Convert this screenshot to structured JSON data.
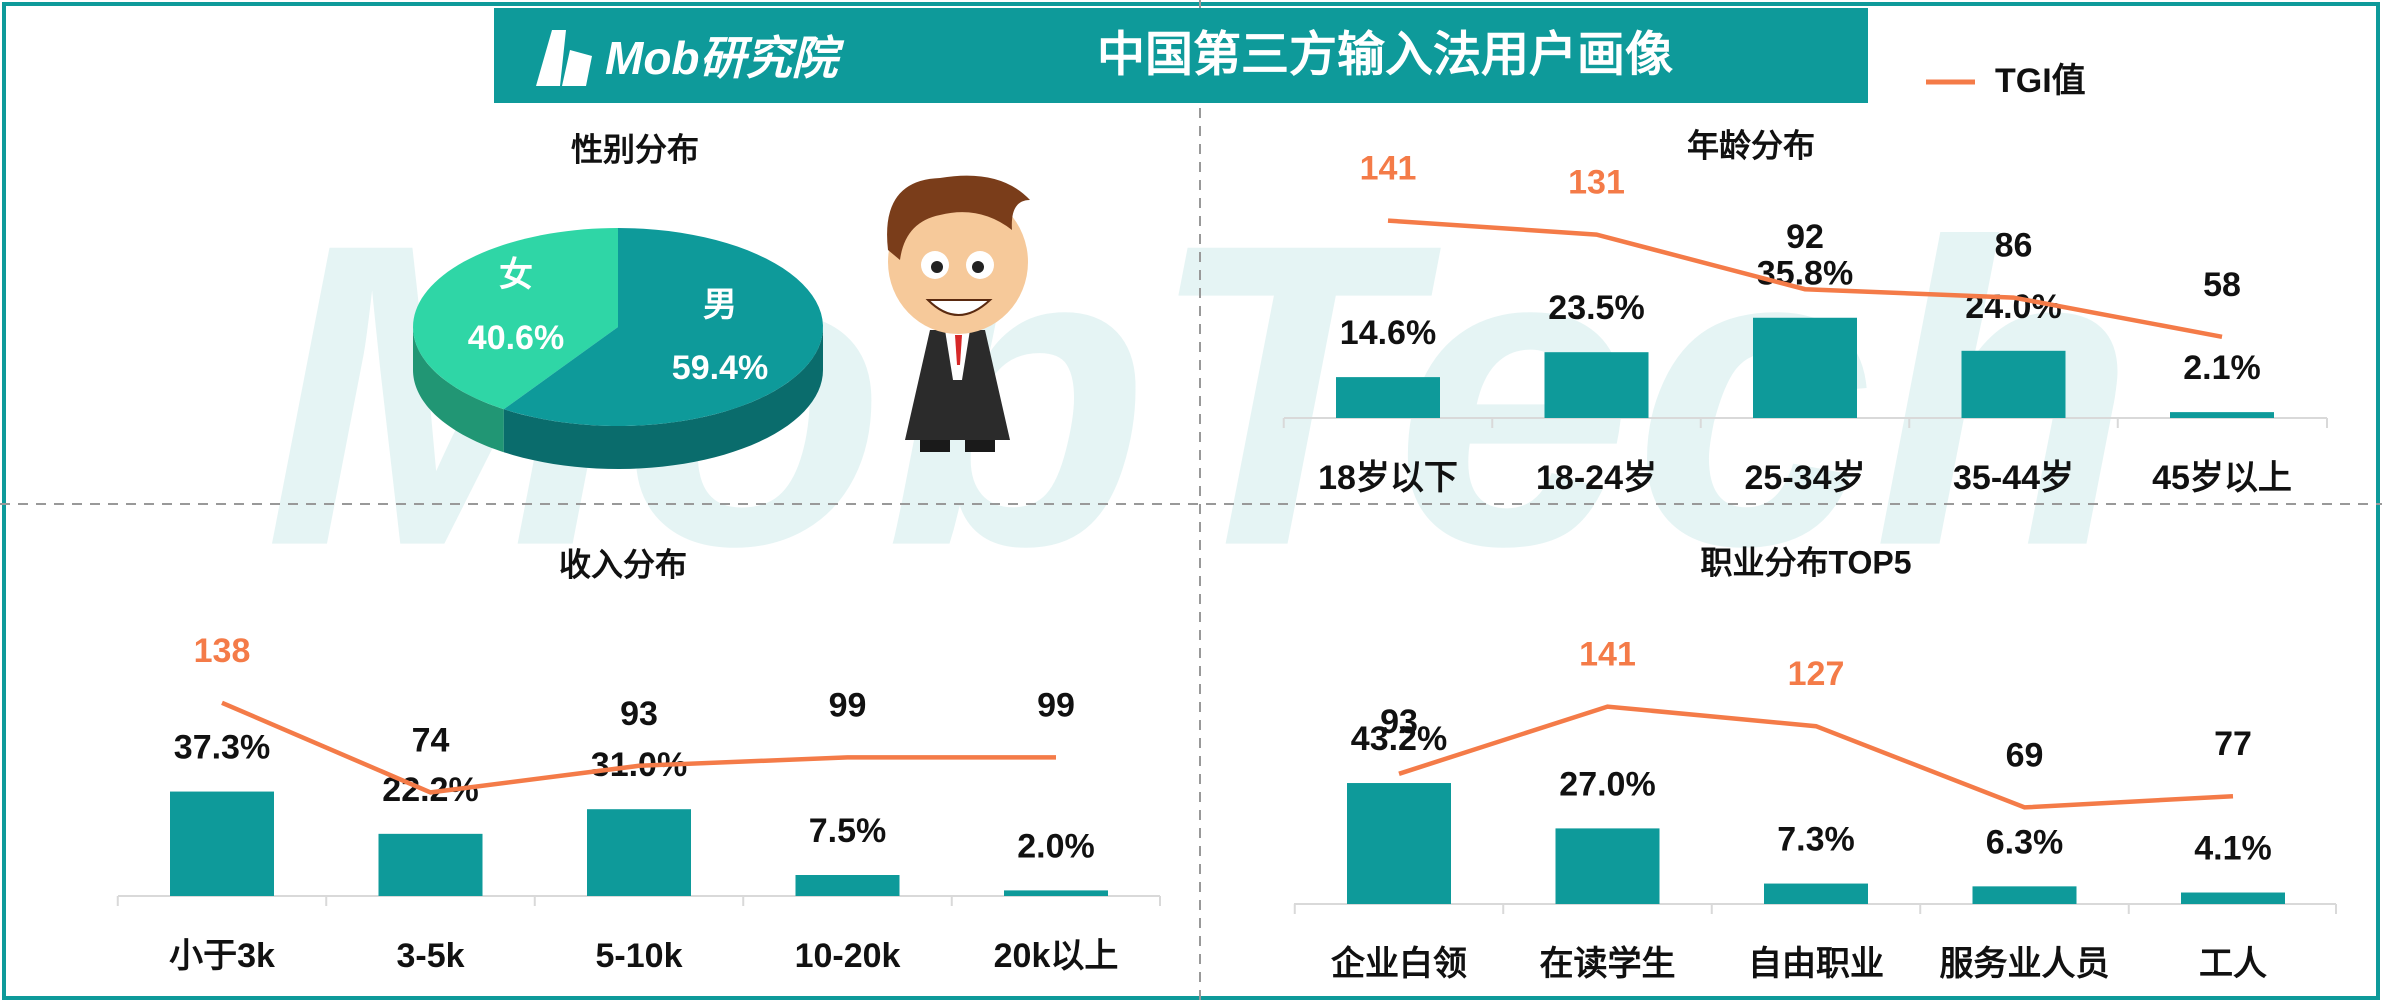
{
  "header": {
    "logo": "Mob研究院",
    "title": "中国第三方输入法用户画像"
  },
  "watermark": "MobTech",
  "chart_data": [
    {
      "type": "pie",
      "title": "性别分布",
      "categories": [
        "女",
        "男"
      ],
      "values": [
        40.6,
        59.4
      ],
      "value_labels": [
        "40.6%",
        "59.4%"
      ],
      "colors": [
        "#2fd6a6",
        "#0e9a9a"
      ]
    },
    {
      "type": "bar-line",
      "title": "年龄分布",
      "categories": [
        "18岁以下",
        "18-24岁",
        "25-34岁",
        "35-44岁",
        "45岁以上"
      ],
      "series": [
        {
          "type": "bar",
          "color": "#0e9a9a",
          "values": [
            14.6,
            23.5,
            35.8,
            24.0,
            2.1
          ],
          "value_labels": [
            "14.6%",
            "23.5%",
            "35.8%",
            "24.0%",
            "2.1%"
          ]
        },
        {
          "type": "line",
          "name": "TGI值",
          "color": "#f47b48",
          "values": [
            141,
            131,
            92,
            86,
            58
          ]
        }
      ]
    },
    {
      "type": "bar-line",
      "title": "收入分布",
      "categories": [
        "小于3k",
        "3-5k",
        "5-10k",
        "10-20k",
        "20k以上"
      ],
      "series": [
        {
          "type": "bar",
          "color": "#0e9a9a",
          "values": [
            37.3,
            22.2,
            31.0,
            7.5,
            2.0
          ],
          "value_labels": [
            "37.3%",
            "22.2%",
            "31.0%",
            "7.5%",
            "2.0%"
          ]
        },
        {
          "type": "line",
          "color": "#f47b48",
          "values": [
            138,
            74,
            93,
            99,
            99
          ]
        }
      ]
    },
    {
      "type": "bar-line",
      "title": "职业分布TOP5",
      "categories": [
        "企业白领",
        "在读学生",
        "自由职业",
        "服务业人员",
        "工人"
      ],
      "series": [
        {
          "type": "bar",
          "color": "#0e9a9a",
          "values": [
            43.2,
            27.0,
            7.3,
            6.3,
            4.1
          ],
          "value_labels": [
            "43.2%",
            "27.0%",
            "7.3%",
            "6.3%",
            "4.1%"
          ]
        },
        {
          "type": "line",
          "color": "#f47b48",
          "values": [
            93,
            141,
            127,
            69,
            77
          ]
        }
      ]
    }
  ]
}
